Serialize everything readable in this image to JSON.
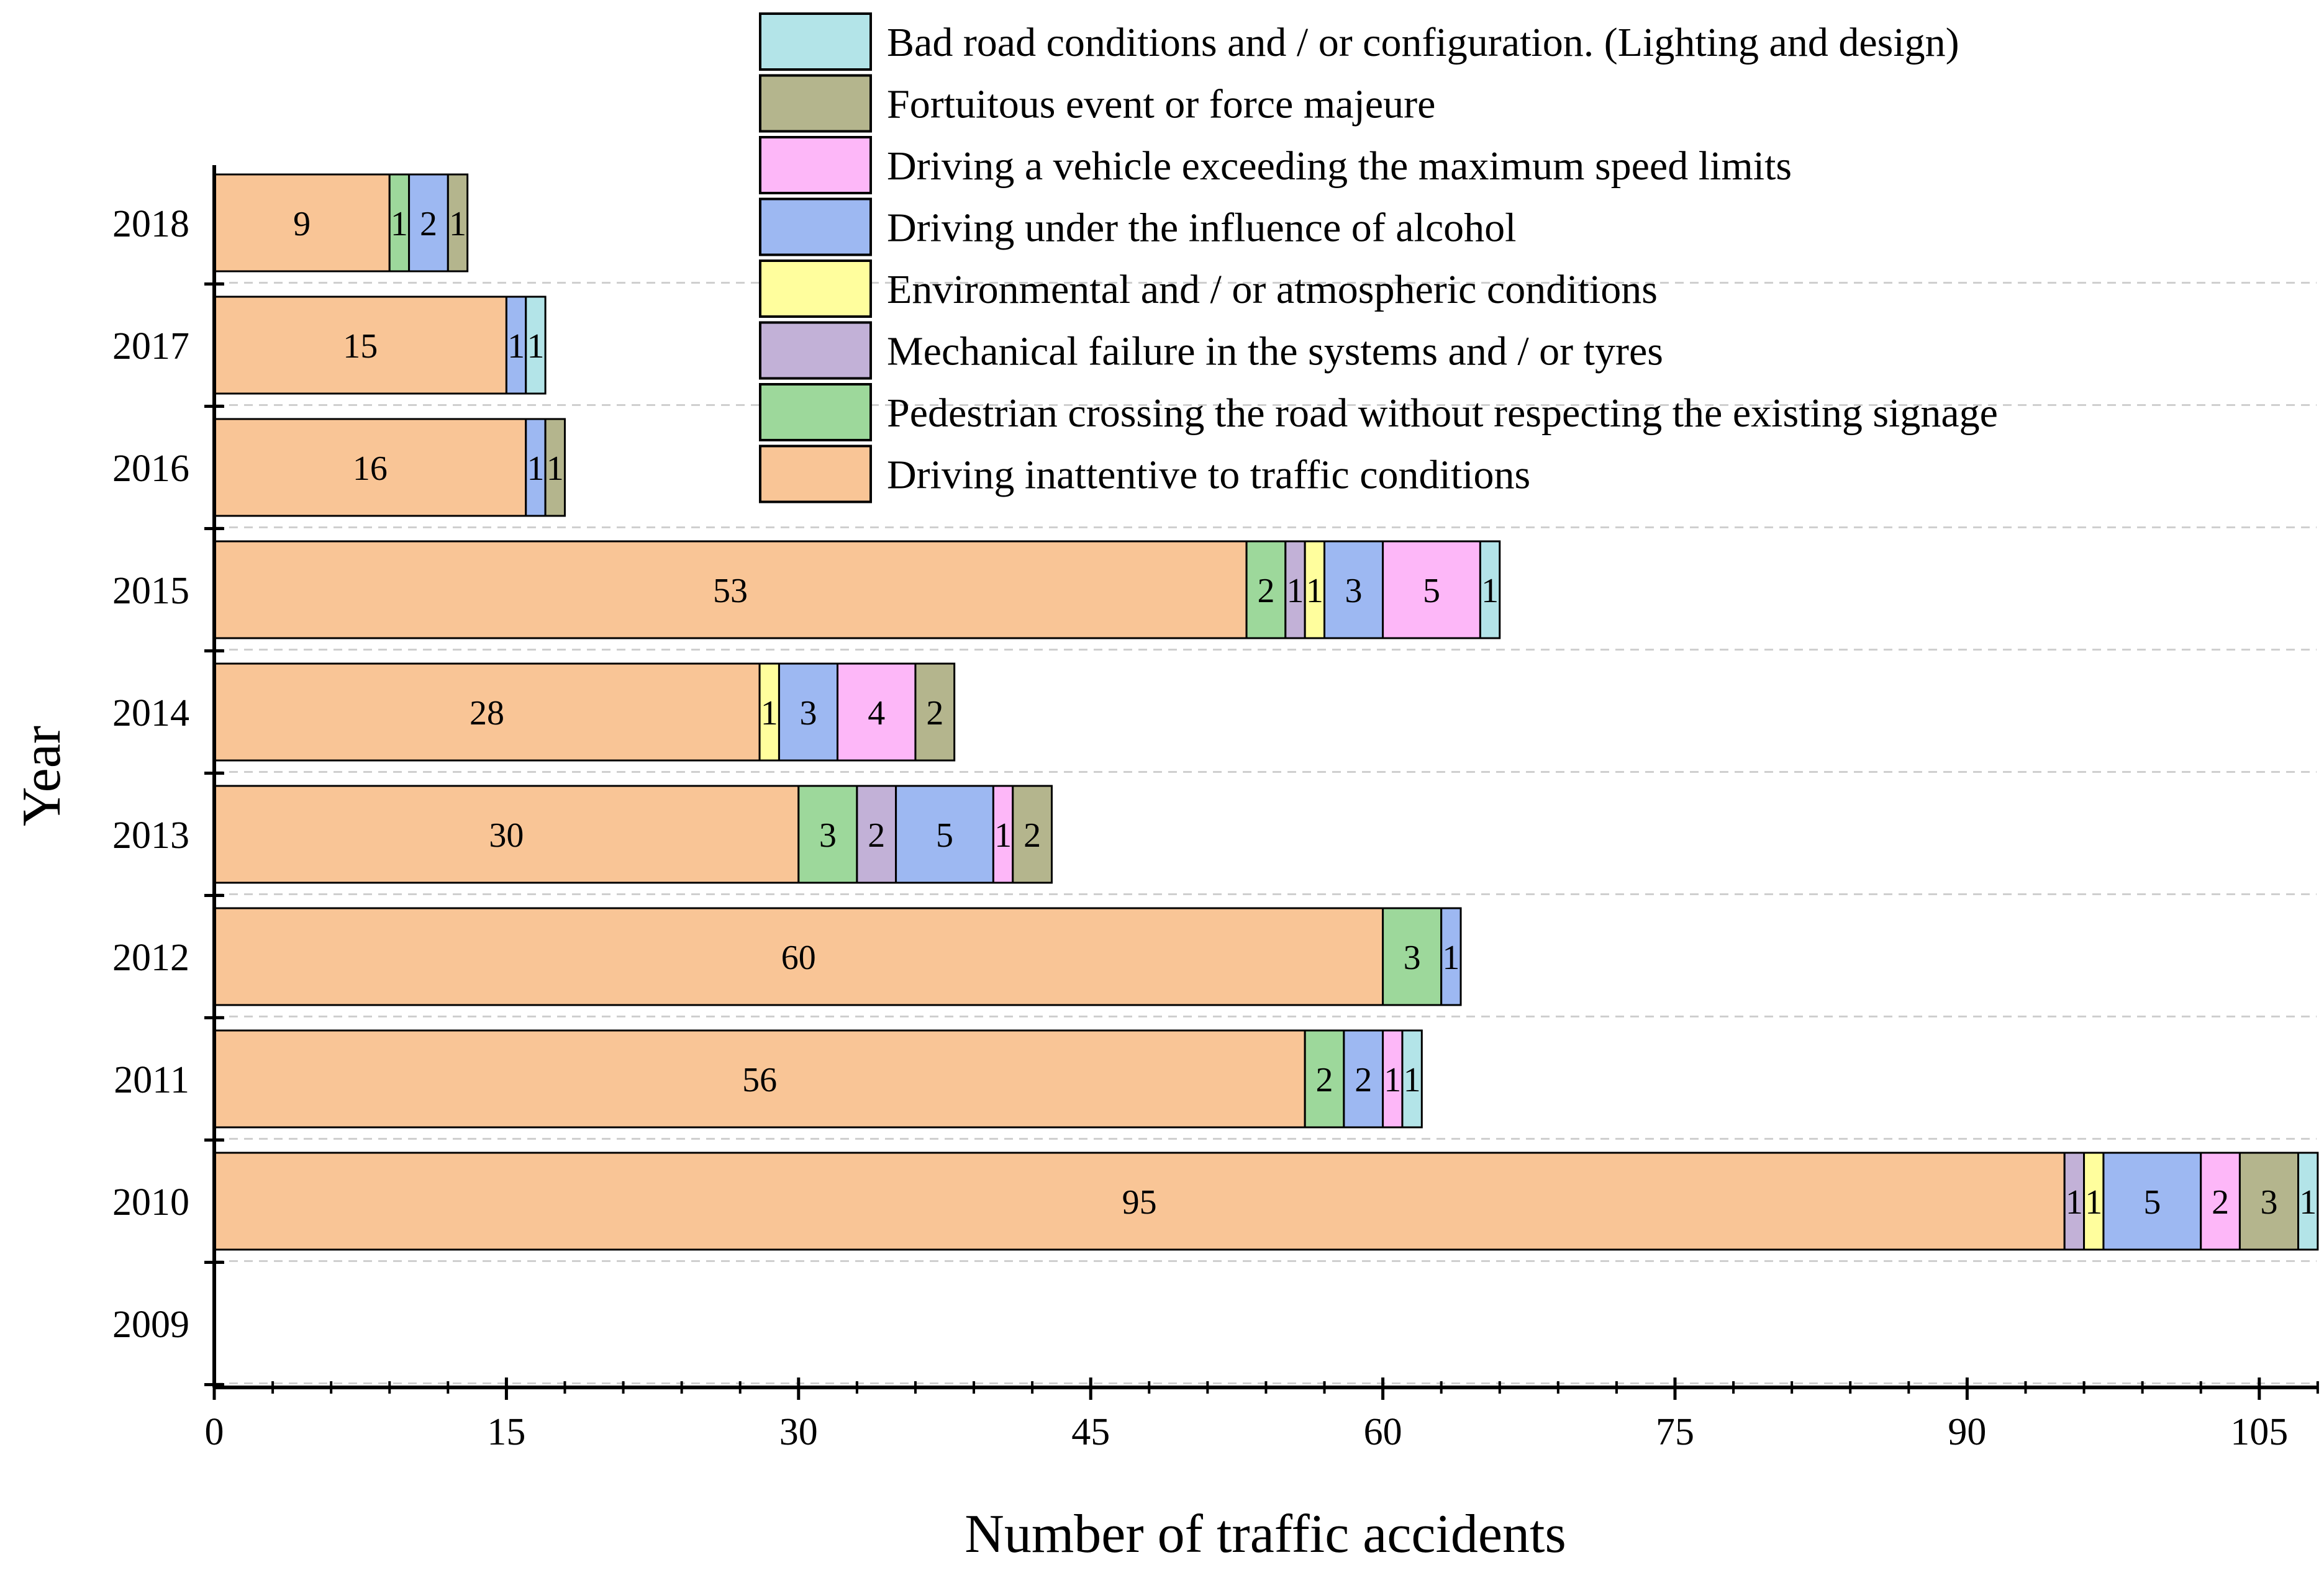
{
  "chart_data": {
    "type": "bar",
    "orientation": "horizontal",
    "stacked": true,
    "title": "",
    "xlabel": "Number of traffic accidents",
    "ylabel": "Year",
    "xlim": [
      0,
      108
    ],
    "xticks": [
      0,
      15,
      30,
      45,
      60,
      75,
      90,
      105
    ],
    "categories": [
      "2009",
      "2010",
      "2011",
      "2012",
      "2013",
      "2014",
      "2015",
      "2016",
      "2017",
      "2018"
    ],
    "series": [
      {
        "name": "Driving inattentive to traffic conditions",
        "color": "#F9C596",
        "values": [
          0,
          95,
          56,
          60,
          30,
          28,
          53,
          16,
          15,
          9
        ]
      },
      {
        "name": "Pedestrian crossing the road without respecting the existing signage",
        "color": "#9DD89B",
        "values": [
          0,
          0,
          2,
          3,
          3,
          0,
          2,
          0,
          0,
          1
        ]
      },
      {
        "name": "Mechanical failure in the systems and / or tyres",
        "color": "#C2B1D7",
        "values": [
          0,
          1,
          0,
          0,
          2,
          0,
          1,
          0,
          0,
          0
        ]
      },
      {
        "name": "Environmental and / or atmospheric conditions",
        "color": "#FFFE9D",
        "values": [
          0,
          1,
          0,
          0,
          0,
          1,
          1,
          0,
          0,
          0
        ]
      },
      {
        "name": "Driving under the influence of alcohol",
        "color": "#9DB8F2",
        "values": [
          0,
          5,
          2,
          1,
          5,
          3,
          3,
          1,
          1,
          2
        ]
      },
      {
        "name": "Driving a vehicle exceeding the maximum speed limits",
        "color": "#FDB7F8",
        "values": [
          0,
          2,
          1,
          0,
          1,
          4,
          5,
          0,
          0,
          0
        ]
      },
      {
        "name": "Fortuitous event or force majeure",
        "color": "#B4B58D",
        "values": [
          0,
          3,
          0,
          0,
          2,
          2,
          0,
          1,
          0,
          1
        ]
      },
      {
        "name": "Bad road conditions and / or configuration. (Lighting and design)",
        "color": "#B3E4E8",
        "values": [
          0,
          1,
          1,
          0,
          0,
          0,
          1,
          0,
          1,
          0
        ]
      }
    ],
    "legend_order": [
      "Bad road conditions and / or configuration. (Lighting and design)",
      "Fortuitous event or force majeure",
      "Driving a vehicle exceeding the maximum speed limits",
      "Driving under the influence of alcohol",
      "Environmental and / or atmospheric conditions",
      "Mechanical failure in the systems and / or tyres",
      "Pedestrian crossing the road without respecting the existing signage",
      "Driving inattentive to traffic conditions"
    ],
    "legend_position": "top-right",
    "grid": "horizontal dashed"
  }
}
